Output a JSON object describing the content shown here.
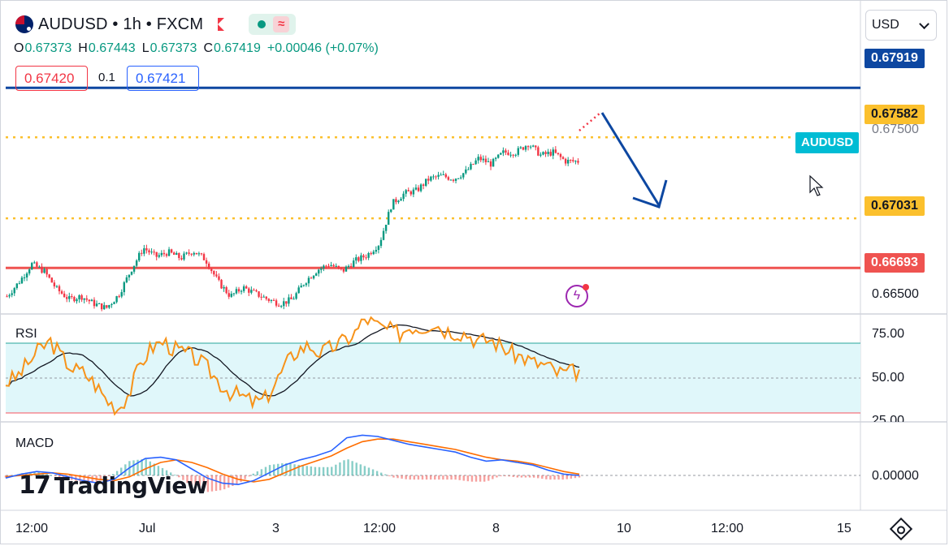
{
  "header": {
    "symbol_title": "AUDUSD • 1h • FXCM",
    "ohlc": {
      "o": "0.67373",
      "h": "0.67443",
      "l": "0.67373",
      "c": "0.67419",
      "change": "+0.00046 (+0.07%)"
    },
    "sell_price": "0.67420",
    "spread": "0.1",
    "buy_price": "0.67421",
    "currency": "USD",
    "icons": [
      "australia-flag-icon",
      "red-flag-icon",
      "live-dot-icon",
      "wave-icon",
      "lightning-icon",
      "settings-icon",
      "cursor-icon"
    ]
  },
  "panes": {
    "rsi_label": "RSI",
    "macd_label": "MACD"
  },
  "branding": {
    "logo_text": "TradingView"
  },
  "colors": {
    "up": "#089981",
    "down": "#f23645",
    "rsi": "#f7931a",
    "rsi_ma": "#131722",
    "macd": "#2962ff",
    "signal": "#ff6d00",
    "level_blue": "#0d47a1",
    "level_yellow": "#fbc02d",
    "level_red": "#ef5350",
    "arrow": "#0d47a1"
  },
  "chart_data": [
    {
      "type": "candlestick",
      "title": "AUDUSD • 1h • FXCM",
      "series_name": "AUDUSD",
      "last_price": 0.67419,
      "price_axis_ticks": [
        "0.67500",
        "0.66500"
      ],
      "ylim": [
        0.6638,
        0.6818
      ],
      "x_tick_labels": [
        "12:00",
        "Jul",
        "3",
        "12:00",
        "8",
        "10",
        "12:00",
        "15"
      ],
      "price_path": [
        0.665,
        0.666,
        0.6672,
        0.6667,
        0.6655,
        0.6648,
        0.665,
        0.6645,
        0.6642,
        0.6651,
        0.6668,
        0.6683,
        0.6677,
        0.668,
        0.6676,
        0.6681,
        0.6675,
        0.666,
        0.665,
        0.6656,
        0.6652,
        0.6648,
        0.6645,
        0.6648,
        0.666,
        0.6668,
        0.6672,
        0.6667,
        0.6674,
        0.6678,
        0.6686,
        0.6713,
        0.672,
        0.6722,
        0.673,
        0.6732,
        0.673,
        0.6735,
        0.6744,
        0.674,
        0.6748,
        0.6748,
        0.6754,
        0.6746,
        0.6748,
        0.6742,
        0.67419
      ],
      "levels": [
        {
          "price": 0.67919,
          "label": "0.67919",
          "color": "#0d47a1"
        },
        {
          "price": 0.67582,
          "label": "0.67582",
          "color": "#fbc02d"
        },
        {
          "price": 0.67031,
          "label": "0.67031",
          "color": "#fbc02d"
        },
        {
          "price": 0.66693,
          "label": "0.66693",
          "color": "#ef5350"
        }
      ],
      "projection": {
        "from_price": 0.67582,
        "to_price": 0.67031,
        "direction": "down"
      }
    },
    {
      "type": "line",
      "title": "RSI",
      "ylim": [
        25,
        80
      ],
      "ticks": [
        "75.00",
        "50.00",
        "25.00"
      ],
      "band": [
        30,
        70
      ],
      "series": [
        {
          "values": [
            45,
            48,
            55,
            62,
            66,
            58,
            52,
            50,
            44,
            36,
            32,
            40,
            55,
            63,
            66,
            62,
            60,
            57,
            52,
            45,
            40,
            38,
            35,
            36,
            45,
            55,
            62,
            64,
            60,
            63,
            66,
            70,
            78,
            74,
            72,
            70,
            74,
            73,
            76,
            72,
            71,
            70,
            66,
            67,
            64,
            60,
            58,
            55,
            54,
            50,
            50,
            51
          ]
        }
      ]
    },
    {
      "type": "line",
      "title": "MACD",
      "ticks": [
        "0.00000"
      ],
      "series": [
        {
          "values": [
            -0.0002,
            0.0001,
            0.0003,
            0.0002,
            -0.0001,
            -0.0004,
            -0.0006,
            -0.0003,
            0.0006,
            0.0013,
            0.0014,
            0.0012,
            0.0005,
            -0.0002,
            -0.0006,
            -0.0007,
            -0.0004,
            0.0002,
            0.0008,
            0.0012,
            0.0015,
            0.0019,
            0.0029,
            0.0031,
            0.003,
            0.0027,
            0.0024,
            0.0022,
            0.002,
            0.0018,
            0.0014,
            0.0011,
            0.0012,
            0.001,
            0.0008,
            0.0004,
            0.0001,
            0.0
          ]
        },
        {
          "values": [
            -0.0001,
            0.0,
            0.0001,
            0.0002,
            0.0001,
            -0.0001,
            -0.0003,
            -0.0004,
            -0.0001,
            0.0005,
            0.001,
            0.0012,
            0.001,
            0.0006,
            0.0001,
            -0.0003,
            -0.0005,
            -0.0003,
            0.0002,
            0.0007,
            0.0011,
            0.0015,
            0.0021,
            0.0026,
            0.0028,
            0.0028,
            0.0026,
            0.0024,
            0.0022,
            0.002,
            0.0017,
            0.0014,
            0.0012,
            0.0011,
            0.0009,
            0.0006,
            0.0003,
            0.0001
          ]
        }
      ]
    }
  ]
}
